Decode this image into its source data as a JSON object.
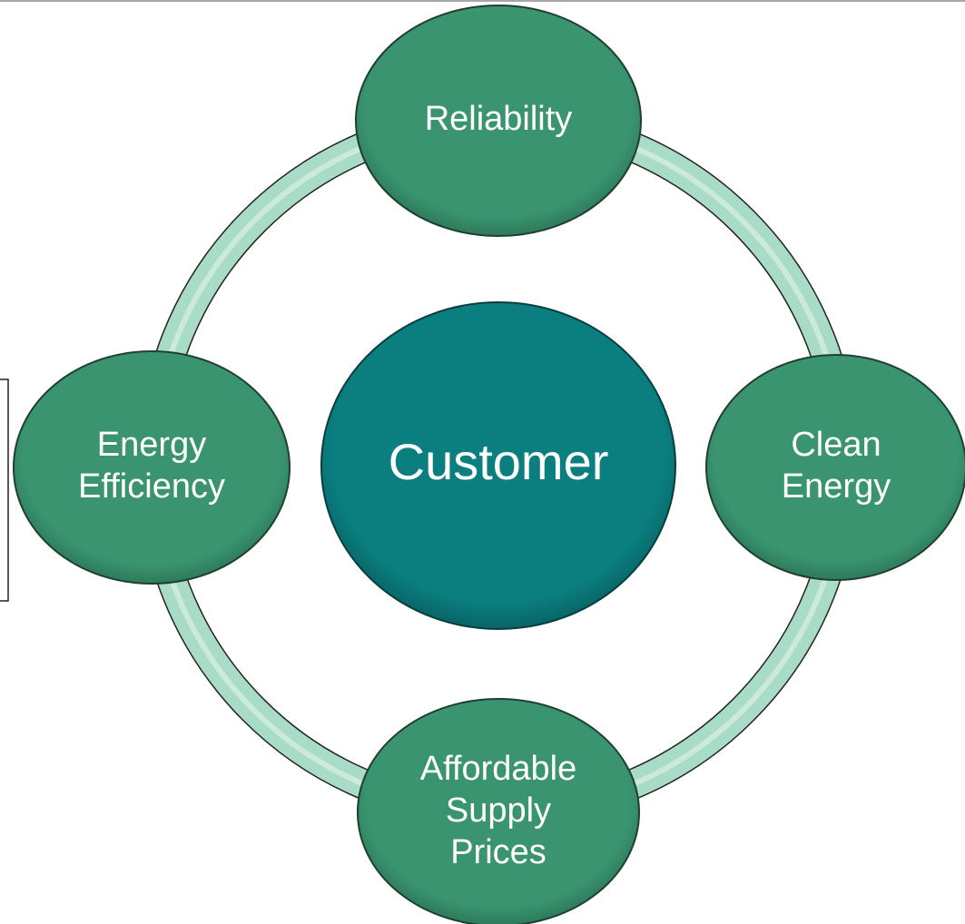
{
  "center": {
    "label": "Customer"
  },
  "nodes": [
    {
      "lines": [
        "Reliability"
      ]
    },
    {
      "lines": [
        "Clean",
        "Energy"
      ]
    },
    {
      "lines": [
        "Affordable",
        "Supply",
        "Prices"
      ]
    },
    {
      "lines": [
        "Energy",
        "Efficiency"
      ]
    }
  ]
}
